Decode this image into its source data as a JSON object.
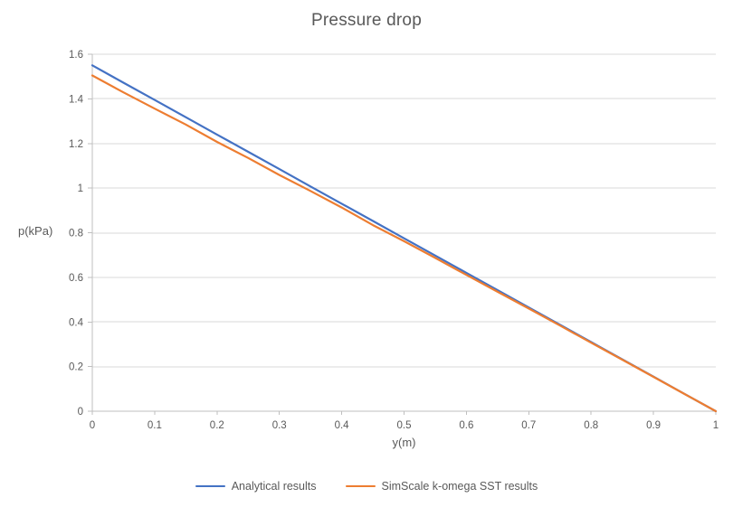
{
  "page": {
    "background": "#ffffff"
  },
  "chart_data": {
    "type": "line",
    "title": "Pressure drop",
    "xlabel": "y(m)",
    "ylabel": "p(kPa)",
    "xlim": [
      0,
      1
    ],
    "ylim": [
      0,
      1.6
    ],
    "grid": "horizontal-only",
    "legend_position": "bottom-center",
    "colors": {
      "gridline": "#D9D9D9",
      "axis_line": "#BFBFBF",
      "text": "#595959",
      "background": "#FFFFFF"
    },
    "y_tick_values": [
      0,
      0.2,
      0.4,
      0.6,
      0.8,
      1,
      1.2,
      1.4,
      1.6
    ],
    "y_tick_labels": [
      "0",
      "0.2",
      "0.4",
      "0.6",
      "0.8",
      "1",
      "1.2",
      "1.4",
      "1.6"
    ],
    "x_tick_values": [
      0,
      0.1,
      0.2,
      0.3,
      0.4,
      0.5,
      0.6,
      0.7,
      0.8,
      0.9,
      1
    ],
    "x_tick_labels": [
      "0",
      "0.1",
      "0.2",
      "0.3",
      "0.4",
      "0.5",
      "0.6",
      "0.7",
      "0.8",
      "0.9",
      "1"
    ],
    "x": [
      0,
      0.05,
      0.1,
      0.15,
      0.2,
      0.25,
      0.3,
      0.35,
      0.4,
      0.45,
      0.5,
      0.55,
      0.6,
      0.65,
      0.7,
      0.75,
      0.8,
      0.85,
      0.9,
      0.95,
      1
    ],
    "series": [
      {
        "name": "Analytical results",
        "color": "#4472C4",
        "values": [
          1.55,
          1.4725,
          1.395,
          1.3175,
          1.24,
          1.1625,
          1.085,
          1.0075,
          0.93,
          0.8525,
          0.775,
          0.6975,
          0.62,
          0.5425,
          0.465,
          0.3875,
          0.31,
          0.2325,
          0.155,
          0.0775,
          0
        ]
      },
      {
        "name": "SimScale k-omega SST results",
        "color": "#ED7D31",
        "values": [
          1.505,
          1.429,
          1.356,
          1.285,
          1.207,
          1.135,
          1.059,
          0.987,
          0.913,
          0.834,
          0.762,
          0.687,
          0.611,
          0.535,
          0.46,
          0.384,
          0.307,
          0.231,
          0.154,
          0.077,
          0
        ]
      }
    ]
  }
}
